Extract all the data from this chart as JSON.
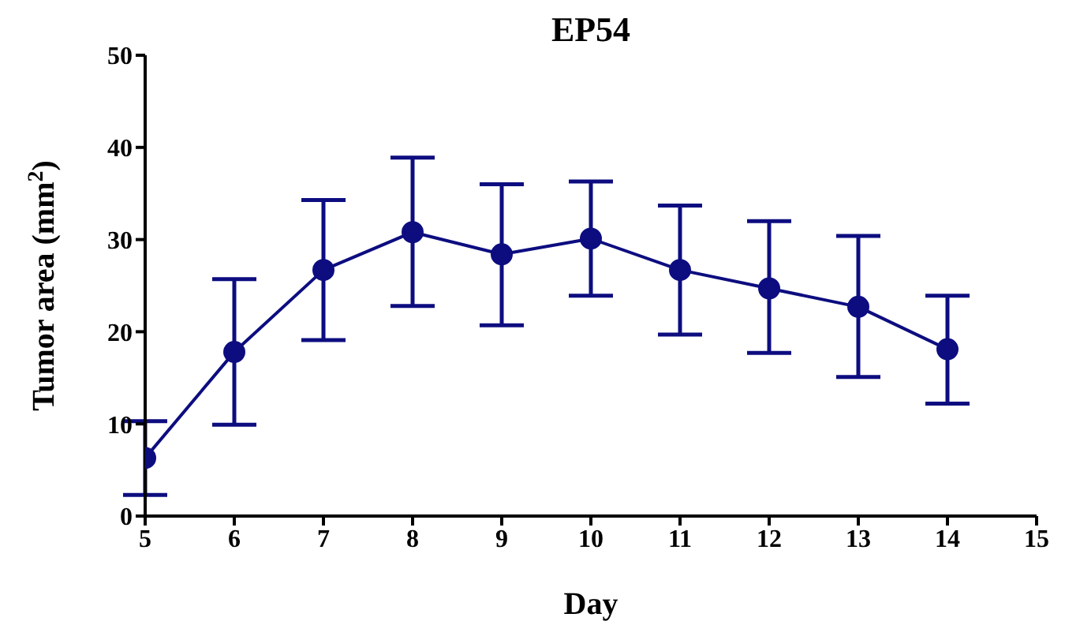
{
  "chart_data": {
    "type": "line",
    "title": "EP54",
    "xlabel": "Day",
    "ylabel": "Tumor area (mm$^{2}$)",
    "x": [
      5,
      6,
      7,
      8,
      9,
      10,
      11,
      12,
      13,
      14
    ],
    "series": [
      {
        "color": "#0d0d80",
        "values": [
          6.3,
          17.8,
          26.7,
          30.8,
          28.4,
          30.1,
          26.7,
          24.7,
          22.7,
          18.1
        ],
        "errors": [
          [
            2.3,
            10.3
          ],
          [
            9.9,
            25.7
          ],
          [
            19.1,
            34.3
          ],
          [
            22.8,
            38.9
          ],
          [
            20.7,
            36.0
          ],
          [
            23.9,
            36.3
          ],
          [
            19.7,
            33.7
          ],
          [
            17.7,
            32.0
          ],
          [
            15.1,
            30.4
          ],
          [
            12.2,
            23.9
          ]
        ]
      }
    ],
    "xlim": [
      5,
      15
    ],
    "xticks": [
      5,
      6,
      7,
      8,
      9,
      10,
      11,
      12,
      13,
      14,
      15
    ],
    "ylim": [
      0,
      50
    ],
    "yticks": [
      0,
      10,
      20,
      30,
      40,
      50
    ],
    "grid": false,
    "legend": false,
    "marker": "circle",
    "line_style": "solid"
  }
}
